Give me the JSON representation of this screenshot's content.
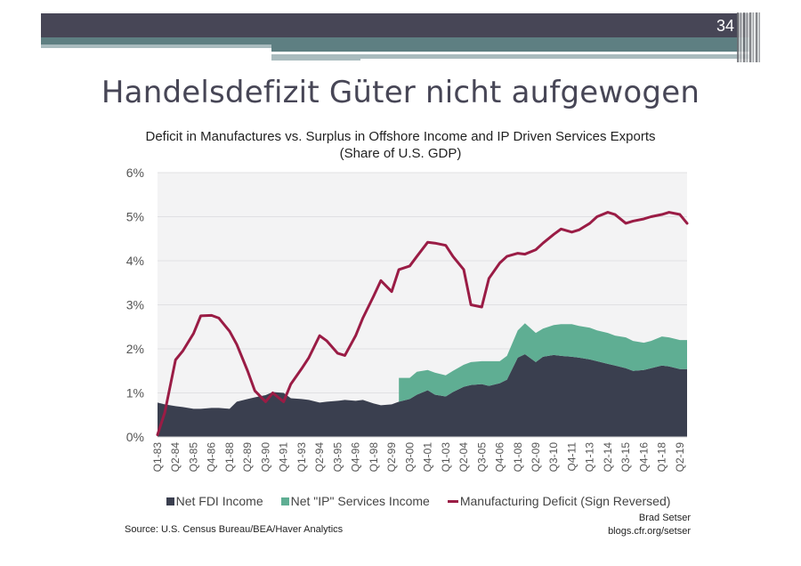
{
  "slide": {
    "page_number": "34",
    "title": "Handelsdefizit Güter nicht aufgewogen",
    "colors": {
      "header_dark": "#474656",
      "header_teal": "#5e7f82",
      "header_light": "#a9bbbe"
    }
  },
  "chart_data": {
    "type": "area",
    "title": "Deficit in Manufactures vs. Surplus in Offshore Income and IP Driven Services Exports",
    "subtitle": "(Share of U.S. GDP)",
    "xlabel": "",
    "ylabel": "",
    "ylim": [
      0,
      6
    ],
    "y_ticks": [
      "0%",
      "1%",
      "2%",
      "3%",
      "4%",
      "5%",
      "6%"
    ],
    "y_tick_values": [
      0,
      1,
      2,
      3,
      4,
      5,
      6
    ],
    "grid": true,
    "legend_position": "bottom",
    "x_tick_labels": [
      "Q1-83",
      "Q2-84",
      "Q3-85",
      "Q4-86",
      "Q1-88",
      "Q2-89",
      "Q3-90",
      "Q4-91",
      "Q1-93",
      "Q2-94",
      "Q3-95",
      "Q4-96",
      "Q1-98",
      "Q2-99",
      "Q3-00",
      "Q4-01",
      "Q1-03",
      "Q2-04",
      "Q3-05",
      "Q4-06",
      "Q1-08",
      "Q2-09",
      "Q3-10",
      "Q4-11",
      "Q1-13",
      "Q2-14",
      "Q3-15",
      "Q4-16",
      "Q1-18",
      "Q2-19"
    ],
    "x": [
      "Q1-83",
      "Q3-83",
      "Q2-84",
      "Q4-84",
      "Q3-85",
      "Q1-86",
      "Q4-86",
      "Q2-87",
      "Q1-88",
      "Q3-88",
      "Q2-89",
      "Q4-89",
      "Q3-90",
      "Q1-91",
      "Q4-91",
      "Q2-92",
      "Q1-93",
      "Q3-93",
      "Q2-94",
      "Q4-94",
      "Q3-95",
      "Q1-96",
      "Q4-96",
      "Q2-97",
      "Q1-98",
      "Q3-98",
      "Q2-99",
      "Q4-99",
      "Q3-00",
      "Q1-01",
      "Q4-01",
      "Q2-02",
      "Q1-03",
      "Q3-03",
      "Q2-04",
      "Q4-04",
      "Q3-05",
      "Q1-06",
      "Q4-06",
      "Q2-07",
      "Q1-08",
      "Q3-08",
      "Q2-09",
      "Q4-09",
      "Q3-10",
      "Q1-11",
      "Q4-11",
      "Q2-12",
      "Q1-13",
      "Q3-13",
      "Q2-14",
      "Q4-14",
      "Q3-15",
      "Q1-16",
      "Q4-16",
      "Q2-17",
      "Q1-18",
      "Q3-18",
      "Q2-19",
      "Q4-19"
    ],
    "series": [
      {
        "name": "Net FDI Income",
        "color": "#3a3f4f",
        "kind": "stacked-area",
        "values": [
          0.78,
          0.74,
          0.7,
          0.68,
          0.64,
          0.64,
          0.66,
          0.66,
          0.64,
          0.8,
          0.86,
          0.9,
          0.95,
          1.02,
          1.0,
          0.88,
          0.86,
          0.84,
          0.78,
          0.8,
          0.82,
          0.84,
          0.82,
          0.84,
          0.76,
          0.72,
          0.74,
          0.8,
          0.86,
          0.96,
          1.06,
          0.96,
          0.92,
          1.02,
          1.14,
          1.18,
          1.2,
          1.16,
          1.22,
          1.3,
          1.8,
          1.88,
          1.7,
          1.82,
          1.86,
          1.84,
          1.82,
          1.8,
          1.76,
          1.72,
          1.66,
          1.62,
          1.56,
          1.5,
          1.52,
          1.56,
          1.62,
          1.6,
          1.54,
          1.54
        ]
      },
      {
        "name": "Net \"IP\" Services Income",
        "color": "#5fae93",
        "kind": "stacked-area",
        "values": [
          0,
          0,
          0,
          0,
          0,
          0,
          0,
          0,
          0,
          0,
          0,
          0,
          0,
          0,
          0,
          0,
          0,
          0,
          0,
          0,
          0,
          0,
          0,
          0,
          0,
          0,
          0,
          0.54,
          0.48,
          0.52,
          0.46,
          0.5,
          0.48,
          0.48,
          0.5,
          0.52,
          0.52,
          0.56,
          0.5,
          0.54,
          0.62,
          0.7,
          0.66,
          0.64,
          0.68,
          0.72,
          0.74,
          0.72,
          0.72,
          0.7,
          0.7,
          0.68,
          0.7,
          0.68,
          0.62,
          0.62,
          0.66,
          0.66,
          0.66,
          0.66
        ]
      },
      {
        "name": "Manufacturing Deficit (Sign Reversed)",
        "color": "#9a1c45",
        "kind": "line",
        "values": [
          0.05,
          0.55,
          1.75,
          1.95,
          2.35,
          2.75,
          2.76,
          2.7,
          2.4,
          2.1,
          1.5,
          1.05,
          0.8,
          1.0,
          0.8,
          1.2,
          1.55,
          1.8,
          2.3,
          2.18,
          1.9,
          1.85,
          2.3,
          2.7,
          3.2,
          3.55,
          3.3,
          3.8,
          3.88,
          4.1,
          4.42,
          4.4,
          4.35,
          4.1,
          3.8,
          3.0,
          2.95,
          3.6,
          3.95,
          4.1,
          4.17,
          4.15,
          4.25,
          4.4,
          4.6,
          4.72,
          4.65,
          4.7,
          4.85,
          5.0,
          5.1,
          5.05,
          4.85,
          4.9,
          4.95,
          5.0,
          5.05,
          5.1,
          5.05,
          4.85
        ]
      }
    ]
  },
  "legend": {
    "items": [
      {
        "label": "Net FDI Income",
        "color": "#3a3f4f",
        "swatch": "box"
      },
      {
        "label": "Net \"IP\" Services Income",
        "color": "#5fae93",
        "swatch": "box"
      },
      {
        "label": "Manufacturing Deficit (Sign Reversed)",
        "color": "#9a1c45",
        "swatch": "line"
      }
    ]
  },
  "footer": {
    "source": "Source: U.S. Census Bureau/BEA/Haver Analytics",
    "author": "Brad Setser",
    "blog": "blogs.cfr.org/setser"
  }
}
